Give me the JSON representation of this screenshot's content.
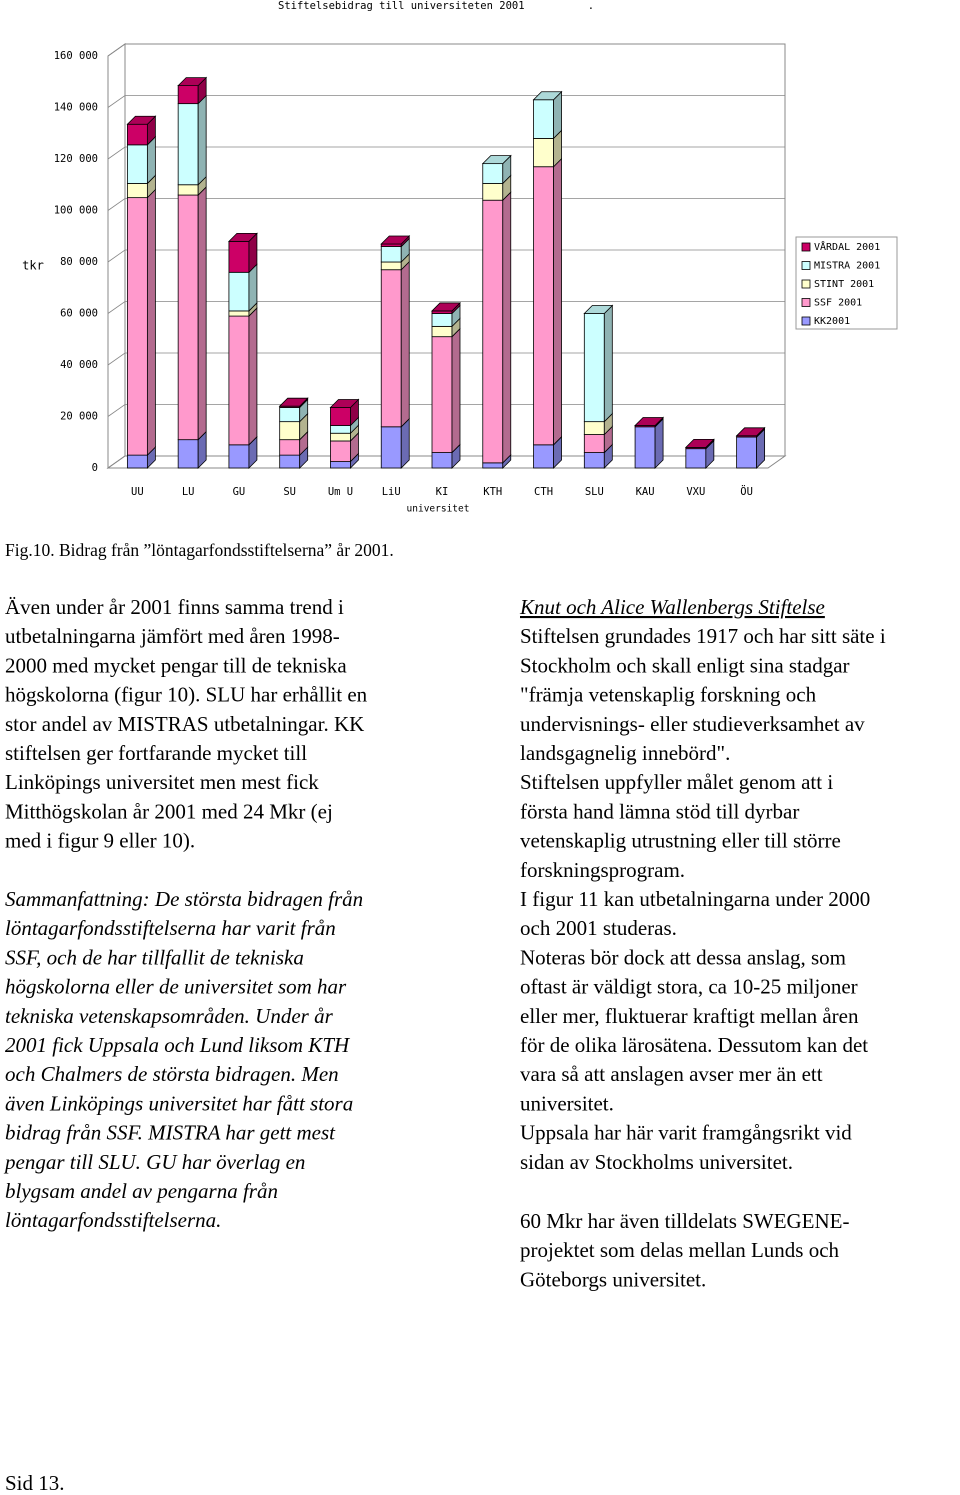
{
  "chart_data": {
    "type": "bar3d-stacked",
    "title": "Stiftelsebidrag till universiteten 2001          .",
    "ylabel": "tkr",
    "xlabel": "universitet",
    "categories": [
      "UU",
      "LU",
      "GU",
      "SU",
      "Um U",
      "LiU",
      "KI",
      "KTH",
      "CTH",
      "SLU",
      "KAU",
      "VXU",
      "ÖU"
    ],
    "series": [
      {
        "name": "KK2001",
        "color": "#9999ff",
        "values": [
          5000,
          11000,
          9000,
          5000,
          2500,
          16000,
          6000,
          2000,
          9000,
          6000,
          16000,
          7500,
          12000
        ]
      },
      {
        "name": "SSF 2001",
        "color": "#ff99cc",
        "values": [
          100000,
          95000,
          50000,
          6000,
          8000,
          61000,
          45000,
          102000,
          108000,
          7000,
          0,
          0,
          0
        ]
      },
      {
        "name": "STINT 2001",
        "color": "#ffffcc",
        "values": [
          5500,
          4000,
          2000,
          7000,
          3000,
          3000,
          4000,
          6500,
          11000,
          5000,
          0,
          0,
          0
        ]
      },
      {
        "name": "MISTRA 2001",
        "color": "#ccffff",
        "values": [
          15000,
          31500,
          15000,
          5500,
          3000,
          6000,
          5000,
          7700,
          15000,
          42000,
          0,
          0,
          0
        ]
      },
      {
        "name": "VÅRDAL 2001",
        "color": "#cc0066",
        "values": [
          8000,
          7000,
          12000,
          500,
          7000,
          1000,
          1000,
          0,
          0,
          0,
          500,
          500,
          500
        ]
      }
    ],
    "ylim": [
      0,
      160000
    ],
    "yticks": [
      0,
      {
        "value": 20000,
        "label": "20 000"
      },
      {
        "value": 40000,
        "label": "40 000"
      },
      {
        "value": 60000,
        "label": "60 000"
      },
      {
        "value": 80000,
        "label": "80 000"
      },
      {
        "value": 100000,
        "label": "100 000"
      },
      {
        "value": 120000,
        "label": "120 000"
      },
      {
        "value": 140000,
        "label": "140 000"
      },
      {
        "value": 160000,
        "label": "160 000"
      }
    ],
    "grid": true,
    "legend": "right"
  },
  "caption": "Fig.10. Bidrag från ”löntagarfondsstiftelserna” år 2001.",
  "left_column": {
    "paragraph1": [
      "Även under år 2001 finns samma trend i",
      "utbetalningarna jämfört med åren 1998-",
      "2000 med mycket pengar till de tekniska",
      "högskolorna (figur 10). SLU har erhållit en",
      "stor andel av MISTRAS utbetalningar.  KK",
      "stiftelsen ger fortfarande mycket till",
      "Linköpings universitet men mest fick",
      "Mitthögskolan år 2001 med 24 Mkr (ej",
      "med i figur  9 eller 10)."
    ],
    "summary": [
      "Sammanfattning: De största bidragen från",
      "löntagarfondsstiftelserna har varit från",
      "SSF, och de har tillfallit de tekniska",
      "högskolorna eller de universitet som har",
      "tekniska vetenskapsområden. Under år",
      "2001 fick Uppsala och Lund liksom KTH",
      "och Chalmers de största bidragen. Men",
      "även Linköpings universitet har fått stora",
      "bidrag från SSF. MISTRA har gett mest",
      "pengar till SLU. GU har överlag en",
      "blygsam andel av pengarna från",
      "löntagarfondsstiftelserna."
    ]
  },
  "right_column": {
    "heading": "Knut och Alice Wallenbergs Stiftelse",
    "body": [
      "Stiftelsen grundades 1917 och har sitt säte i",
      "Stockholm och skall enligt sina stadgar",
      "\"främja vetenskaplig forskning och",
      "undervisnings- eller studieverksamhet av",
      "landsgagnelig innebörd\".",
      "Stiftelsen uppfyller målet genom att i",
      "första hand lämna stöd till dyrbar",
      "vetenskaplig utrustning eller till större",
      "forskningsprogram.",
      "I figur 11 kan utbetalningarna under 2000",
      "och 2001 studeras.",
      "Noteras bör dock att dessa anslag, som",
      "oftast är väldigt stora, ca 10-25 miljoner",
      "eller mer, fluktuerar kraftigt mellan åren",
      "för de olika lärosätena. Dessutom kan det",
      "vara så att anslagen avser mer än ett",
      "universitet.",
      "Uppsala har här varit framgångsrikt vid",
      "sidan av Stockholms universitet."
    ],
    "last": [
      "60 Mkr har även tilldelats SWEGENE-",
      "projektet som delas mellan Lunds och",
      "Göteborgs universitet."
    ]
  },
  "footer": "Sid 13."
}
